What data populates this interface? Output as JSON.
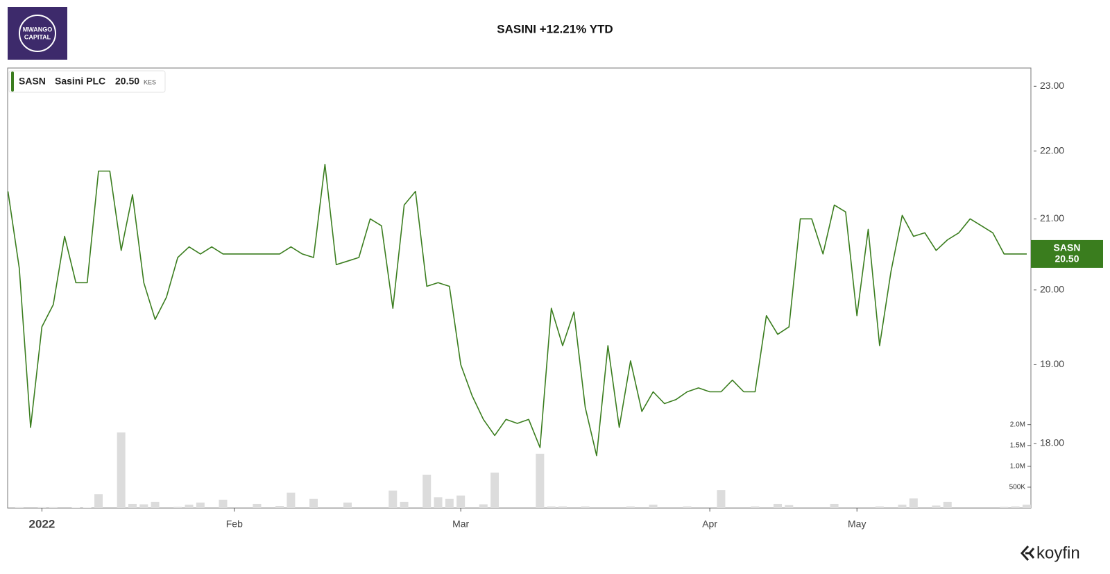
{
  "chart_data": {
    "type": "line",
    "title": "SASINI +12.21% YTD",
    "logo_text": [
      "MWANGO",
      "CAPITAL"
    ],
    "brand": "koyfin",
    "legend": {
      "ticker": "SASN",
      "name": "Sasini PLC",
      "currency": "KES"
    },
    "last_price": {
      "value": 20.5,
      "label": "20.50"
    },
    "log_y": true,
    "ylim": [
      17.22,
      23.29
    ],
    "yticks": [
      {
        "value": 18,
        "label": "18.00"
      },
      {
        "value": 19,
        "label": "19.00"
      },
      {
        "value": 20,
        "label": "20.00"
      },
      {
        "value": 21,
        "label": "21.00"
      },
      {
        "value": 22,
        "label": "22.00"
      },
      {
        "value": 23,
        "label": "23.00"
      }
    ],
    "y2lim": [
      0,
      10540000
    ],
    "y2ticks": [
      {
        "value": 500000,
        "label": "500K"
      },
      {
        "value": 1000000,
        "label": "1.0M"
      },
      {
        "value": 1500000,
        "label": "1.5M"
      },
      {
        "value": 2000000,
        "label": "2.0M"
      }
    ],
    "categories": [
      null,
      null,
      null,
      "2022",
      null,
      null,
      null,
      null,
      null,
      null,
      null,
      null,
      null,
      null,
      null,
      null,
      null,
      null,
      null,
      null,
      "Feb",
      null,
      null,
      null,
      null,
      null,
      null,
      null,
      null,
      null,
      null,
      null,
      null,
      null,
      null,
      null,
      null,
      null,
      null,
      null,
      "Mar",
      null,
      null,
      null,
      null,
      null,
      null,
      null,
      null,
      null,
      null,
      null,
      null,
      null,
      null,
      null,
      null,
      null,
      null,
      null,
      null,
      null,
      "Apr",
      null,
      null,
      null,
      null,
      null,
      null,
      null,
      null,
      null,
      null,
      null,
      null,
      "May",
      null,
      null,
      null,
      null,
      null,
      null,
      null,
      null,
      null,
      null,
      null,
      null,
      null,
      null,
      null
    ],
    "series": [
      {
        "name": "SASN",
        "color": "#3a7d1e",
        "values": [
          21.4,
          20.3,
          18.2,
          19.5,
          19.8,
          20.75,
          20.1,
          20.1,
          21.7,
          21.7,
          20.55,
          21.35,
          20.1,
          19.6,
          19.9,
          20.45,
          20.6,
          20.5,
          20.6,
          20.5,
          20.5,
          20.5,
          20.5,
          20.5,
          20.5,
          20.6,
          20.5,
          20.45,
          21.8,
          20.35,
          20.4,
          20.45,
          21.0,
          20.9,
          19.75,
          21.2,
          21.4,
          20.05,
          20.1,
          20.05,
          19.0,
          18.6,
          18.3,
          18.1,
          18.3,
          18.25,
          18.3,
          17.95,
          19.75,
          19.25,
          19.7,
          18.45,
          17.85,
          19.25,
          18.2,
          19.05,
          18.4,
          18.65,
          18.5,
          18.55,
          18.65,
          18.7,
          18.65,
          18.65,
          18.8,
          18.65,
          18.65,
          19.65,
          19.4,
          19.5,
          21.0,
          21.0,
          20.5,
          21.2,
          21.1,
          19.65,
          20.85,
          19.25,
          20.25,
          21.05,
          20.75,
          20.8,
          20.55,
          20.7,
          20.8,
          21.0,
          20.9,
          20.8,
          20.5,
          20.5,
          20.5
        ]
      }
    ],
    "volume": {
      "color": "#dcdcdc",
      "axis": "y2",
      "values": [
        0,
        20000,
        0,
        20000,
        20000,
        0,
        10000,
        10000,
        330000,
        0,
        1810000,
        100000,
        90000,
        150000,
        0,
        30000,
        80000,
        130000,
        0,
        200000,
        0,
        0,
        100000,
        0,
        50000,
        370000,
        0,
        220000,
        0,
        0,
        130000,
        0,
        0,
        0,
        420000,
        150000,
        0,
        800000,
        260000,
        220000,
        300000,
        0,
        90000,
        850000,
        0,
        0,
        0,
        1300000,
        40000,
        40000,
        0,
        40000,
        0,
        0,
        0,
        40000,
        0,
        80000,
        0,
        0,
        40000,
        0,
        0,
        430000,
        0,
        0,
        40000,
        0,
        100000,
        70000,
        0,
        0,
        0,
        100000,
        0,
        0,
        0,
        40000,
        0,
        80000,
        230000,
        0,
        60000,
        150000,
        0,
        0,
        0,
        0,
        30000,
        40000,
        80000
      ]
    }
  }
}
